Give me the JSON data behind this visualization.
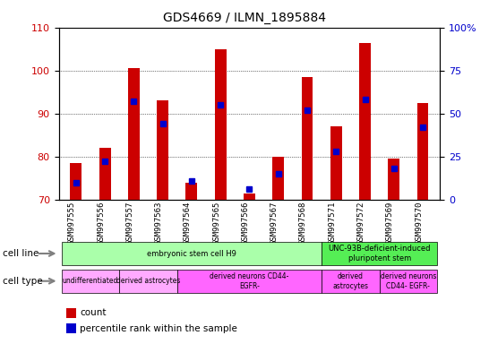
{
  "title": "GDS4669 / ILMN_1895884",
  "samples": [
    "GSM997555",
    "GSM997556",
    "GSM997557",
    "GSM997563",
    "GSM997564",
    "GSM997565",
    "GSM997566",
    "GSM997567",
    "GSM997568",
    "GSM997571",
    "GSM997572",
    "GSM997569",
    "GSM997570"
  ],
  "count_values": [
    78.5,
    82.0,
    100.5,
    93.0,
    74.0,
    105.0,
    71.5,
    80.0,
    98.5,
    87.0,
    106.5,
    79.5,
    92.5
  ],
  "percentile_values": [
    10,
    22,
    57,
    44,
    11,
    55,
    6,
    15,
    52,
    28,
    58,
    18,
    42
  ],
  "ylim_left": [
    70,
    110
  ],
  "ylim_right": [
    0,
    100
  ],
  "yticks_left": [
    70,
    80,
    90,
    100,
    110
  ],
  "yticks_right": [
    0,
    25,
    50,
    75,
    100
  ],
  "bar_color": "#cc0000",
  "dot_color": "#0000cc",
  "cell_line_row": {
    "label": "cell line",
    "groups": [
      {
        "start": 0,
        "end": 8,
        "text": "embryonic stem cell H9",
        "color": "#aaffaa"
      },
      {
        "start": 9,
        "end": 12,
        "text": "UNC-93B-deficient-induced\npluripotent stem",
        "color": "#00ff44"
      }
    ]
  },
  "cell_type_row": {
    "label": "cell type",
    "groups": [
      {
        "start": 0,
        "end": 1,
        "text": "undifferentiated",
        "color": "#ffaaff"
      },
      {
        "start": 2,
        "end": 3,
        "text": "derived astrocytes",
        "color": "#ffaaff"
      },
      {
        "start": 4,
        "end": 8,
        "text": "derived neurons CD44-\nEGFR-",
        "color": "#ff88ff"
      },
      {
        "start": 9,
        "end": 10,
        "text": "derived\nastrocytes",
        "color": "#ff88ff"
      },
      {
        "start": 11,
        "end": 12,
        "text": "derived neurons\nCD44- EGFR-",
        "color": "#ff88ff"
      }
    ]
  },
  "legend_items": [
    {
      "color": "#cc0000",
      "label": "count"
    },
    {
      "color": "#0000cc",
      "label": "percentile rank within the sample"
    }
  ]
}
